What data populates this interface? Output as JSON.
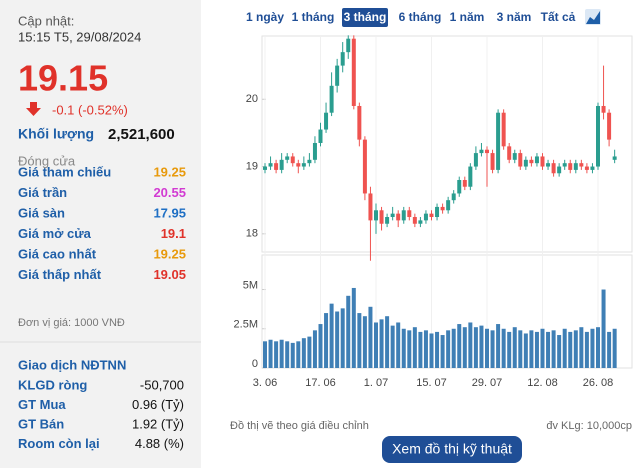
{
  "panel": {
    "updated_label": "Cập nhật:",
    "updated": "15:15 T5, 29/08/2024",
    "price": "19.15",
    "change": "-0.1 (-0.52%)",
    "volume_label": "Khối lượng",
    "volume": "2,521,600",
    "status": "Đóng cửa",
    "rows": [
      {
        "label": "Giá tham chiếu",
        "value": "19.25",
        "color": "#e89a0c"
      },
      {
        "label": "Giá trần",
        "value": "20.55",
        "color": "#d23bd2"
      },
      {
        "label": "Giá sàn",
        "value": "17.95",
        "color": "#1e6fc4"
      },
      {
        "label": "Giá mở cửa",
        "value": "19.1",
        "color": "#e0322a"
      },
      {
        "label": "Giá cao nhất",
        "value": "19.25",
        "color": "#e89a0c"
      },
      {
        "label": "Giá thấp nhất",
        "value": "19.05",
        "color": "#e0322a"
      }
    ],
    "unit_note": "Đơn vị giá: 1000 VNĐ",
    "foreign_title": "Giao dịch NĐTNN",
    "foreign_rows": [
      {
        "label": "KLGD ròng",
        "value": "-50,700"
      },
      {
        "label": "GT Mua",
        "value": "0.96 (Tỷ)"
      },
      {
        "label": "GT Bán",
        "value": "1.92 (Tỷ)"
      },
      {
        "label": "Room còn lại",
        "value": "4.88 (%)"
      }
    ]
  },
  "ranges": [
    "1 ngày",
    "1 tháng",
    "3 tháng",
    "6 tháng",
    "1 năm",
    "3 năm",
    "Tất cả"
  ],
  "active_range": 2,
  "chart_data": {
    "type": "candlestick",
    "categories": [
      "3. 06",
      null,
      null,
      null,
      null,
      null,
      null,
      null,
      null,
      null,
      "17. 06",
      null,
      null,
      null,
      null,
      null,
      null,
      null,
      null,
      null,
      "1. 07",
      null,
      null,
      null,
      null,
      null,
      null,
      null,
      null,
      null,
      "15. 07",
      null,
      null,
      null,
      null,
      null,
      null,
      null,
      null,
      null,
      "29. 07",
      null,
      null,
      null,
      null,
      null,
      null,
      null,
      null,
      null,
      "12. 08",
      null,
      null,
      null,
      null,
      null,
      null,
      null,
      null,
      null,
      "26. 08",
      null,
      null,
      null
    ],
    "open": [
      18.95,
      19.0,
      19.05,
      18.95,
      19.1,
      19.15,
      19.05,
      19.0,
      19.05,
      19.1,
      19.35,
      19.55,
      19.8,
      20.2,
      20.5,
      20.7,
      20.9,
      19.9,
      19.4,
      18.6,
      18.2,
      18.35,
      18.15,
      18.25,
      18.3,
      18.2,
      18.35,
      18.25,
      18.15,
      18.2,
      18.3,
      18.25,
      18.4,
      18.35,
      18.5,
      18.6,
      18.8,
      18.7,
      19.0,
      19.2,
      19.25,
      19.2,
      18.95,
      19.8,
      19.3,
      19.1,
      19.2,
      19.0,
      19.1,
      19.05,
      19.15,
      19.0,
      19.05,
      18.9,
      19.0,
      19.05,
      18.95,
      19.05,
      19.0,
      18.95,
      19.0,
      19.9,
      19.8,
      19.1
    ],
    "high": [
      19.05,
      19.15,
      19.1,
      19.2,
      19.2,
      19.2,
      19.1,
      19.15,
      19.2,
      19.45,
      19.65,
      19.95,
      20.4,
      20.6,
      20.85,
      20.95,
      20.95,
      19.95,
      19.45,
      18.7,
      18.45,
      18.4,
      18.3,
      18.4,
      18.35,
      18.4,
      18.4,
      18.3,
      18.25,
      18.35,
      18.35,
      18.45,
      18.45,
      18.55,
      18.65,
      18.85,
      18.85,
      19.05,
      19.3,
      19.35,
      19.3,
      19.25,
      19.85,
      19.85,
      19.35,
      19.25,
      19.25,
      19.15,
      19.15,
      19.2,
      19.2,
      19.1,
      19.1,
      19.05,
      19.1,
      19.1,
      19.1,
      19.1,
      19.05,
      19.05,
      19.95,
      20.5,
      19.85,
      19.25
    ],
    "low": [
      18.9,
      18.95,
      18.9,
      18.9,
      19.05,
      19.0,
      18.9,
      18.95,
      19.0,
      19.05,
      19.3,
      19.5,
      19.75,
      20.1,
      20.4,
      20.6,
      19.85,
      19.3,
      18.5,
      17.6,
      18.0,
      18.05,
      18.1,
      18.2,
      18.1,
      18.15,
      18.2,
      18.1,
      18.1,
      18.15,
      18.2,
      18.2,
      18.3,
      18.3,
      18.45,
      18.55,
      18.65,
      18.65,
      18.95,
      19.15,
      18.7,
      18.9,
      18.9,
      19.25,
      19.05,
      19.05,
      18.95,
      18.95,
      19.0,
      19.0,
      18.95,
      18.95,
      18.85,
      18.85,
      18.95,
      18.9,
      18.9,
      18.95,
      18.9,
      18.9,
      18.95,
      19.7,
      19.3,
      19.05
    ],
    "close": [
      19.0,
      19.05,
      18.95,
      19.1,
      19.15,
      19.05,
      19.0,
      19.05,
      19.1,
      19.35,
      19.55,
      19.8,
      20.2,
      20.5,
      20.7,
      20.9,
      19.9,
      19.4,
      18.6,
      18.2,
      18.35,
      18.15,
      18.25,
      18.3,
      18.2,
      18.35,
      18.25,
      18.15,
      18.2,
      18.3,
      18.25,
      18.4,
      18.35,
      18.5,
      18.6,
      18.8,
      18.7,
      19.0,
      19.2,
      19.25,
      19.2,
      18.95,
      19.8,
      19.3,
      19.1,
      19.2,
      19.0,
      19.1,
      19.05,
      19.15,
      19.0,
      19.05,
      18.9,
      19.0,
      19.05,
      18.95,
      19.05,
      19.0,
      18.95,
      19.0,
      19.9,
      19.8,
      19.4,
      19.15
    ],
    "volume": [
      1700000,
      1800000,
      1700000,
      1800000,
      1700000,
      1600000,
      1700000,
      1900000,
      2000000,
      2400000,
      2800000,
      3500000,
      4100000,
      3600000,
      3800000,
      4600000,
      5100000,
      3500000,
      3300000,
      3900000,
      2900000,
      3100000,
      3300000,
      2700000,
      2900000,
      2500000,
      2400000,
      2600000,
      2300000,
      2400000,
      2200000,
      2300000,
      2100000,
      2400000,
      2500000,
      2800000,
      2600000,
      2900000,
      2600000,
      2700000,
      2500000,
      2400000,
      2800000,
      2500000,
      2300000,
      2600000,
      2400000,
      2200000,
      2400000,
      2300000,
      2500000,
      2300000,
      2400000,
      2100000,
      2500000,
      2300000,
      2400000,
      2600000,
      2300000,
      2500000,
      2600000,
      5000000,
      2300000,
      2500000
    ],
    "up_color": "#2a9d8f",
    "down_color": "#ef5350",
    "volume_color": "#3f7fb5",
    "ylim": [
      17.73,
      20.94
    ],
    "yticks": [
      18,
      19,
      20
    ],
    "vlim": [
      0,
      7200000
    ],
    "vticks": [
      0,
      {
        "value": 2500000,
        "label": "2.5M"
      },
      {
        "value": 5000000,
        "label": "5M"
      }
    ],
    "note": "Đồ thị vẽ theo giá điều chỉnh",
    "volume_unit": "đv KLg: 10,000cp",
    "button": "Xem đồ thị kỹ thuật"
  }
}
